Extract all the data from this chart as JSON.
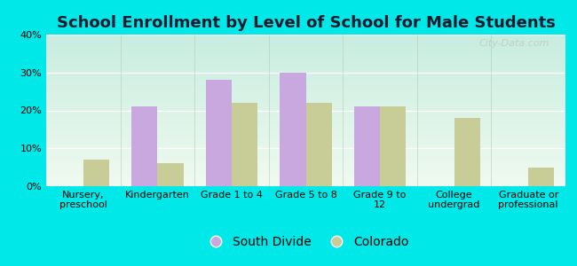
{
  "title": "School Enrollment by Level of School for Male Students",
  "categories": [
    "Nursery,\npreschool",
    "Kindergarten",
    "Grade 1 to 4",
    "Grade 5 to 8",
    "Grade 9 to\n12",
    "College\nundergrad",
    "Graduate or\nprofessional"
  ],
  "south_divide": [
    0,
    21,
    28,
    30,
    21,
    0,
    0
  ],
  "colorado": [
    7,
    6,
    22,
    22,
    21,
    18,
    5
  ],
  "south_divide_color": "#c9a8e0",
  "colorado_color": "#c8cc96",
  "background_color": "#00e8e8",
  "ylim": [
    0,
    40
  ],
  "yticks": [
    0,
    10,
    20,
    30,
    40
  ],
  "ytick_labels": [
    "0%",
    "10%",
    "20%",
    "30%",
    "40%"
  ],
  "bar_width": 0.35,
  "title_fontsize": 13,
  "tick_fontsize": 8,
  "legend_labels": [
    "South Divide",
    "Colorado"
  ],
  "watermark": "City-Data.com"
}
